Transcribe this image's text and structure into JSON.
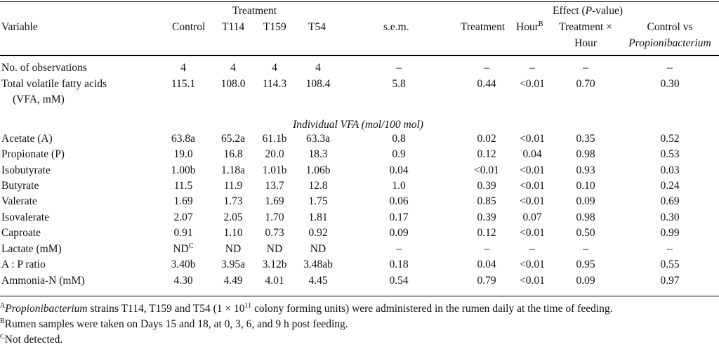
{
  "header": {
    "treatment_group": "Treatment",
    "effect_group_prefix": "Effect (",
    "effect_group_p": "P",
    "effect_group_suffix": "-value)",
    "variable": "Variable",
    "control": "Control",
    "t114": "T114",
    "t159": "T159",
    "t54": "T54",
    "sem": "s.e.m.",
    "eff_treatment": "Treatment",
    "eff_hour": "Hour",
    "eff_hour_sup": "B",
    "eff_txh_line1": "Treatment ×",
    "eff_txh_line2": "Hour",
    "eff_cvp_line1": "Control vs",
    "eff_cvp_line2": "Propionibacterium"
  },
  "section_label": "Individual VFA (mol/100 mol)",
  "rows_top": [
    {
      "variable": "No. of observations",
      "control": "4",
      "t114": "4",
      "t159": "4",
      "t54": "4",
      "sem": "–",
      "treatment": "–",
      "hour": "–",
      "txh": "–",
      "cvp": "–"
    },
    {
      "variable": "Total volatile fatty acids",
      "variable2": "(VFA, mM)",
      "control": "115.1",
      "t114": "108.0",
      "t159": "114.3",
      "t54": "108.4",
      "sem": "5.8",
      "treatment": "0.44",
      "hour": "<0.01",
      "txh": "0.70",
      "cvp": "0.30"
    }
  ],
  "rows": [
    {
      "variable": "Acetate (A)",
      "control": "63.8a",
      "t114": "65.2a",
      "t159": "61.1b",
      "t54": "63.3a",
      "sem": "0.8",
      "treatment": "0.02",
      "hour": "<0.01",
      "txh": "0.35",
      "cvp": "0.52"
    },
    {
      "variable": "Propionate (P)",
      "control": "19.0",
      "t114": "16.8",
      "t159": "20.0",
      "t54": "18.3",
      "sem": "0.9",
      "treatment": "0.12",
      "hour": "0.04",
      "txh": "0.98",
      "cvp": "0.53"
    },
    {
      "variable": "Isobutyrate",
      "control": "1.00b",
      "t114": "1.18a",
      "t159": "1.01b",
      "t54": "1.06b",
      "sem": "0.04",
      "treatment": "<0.01",
      "hour": "<0.01",
      "txh": "0.93",
      "cvp": "0.03"
    },
    {
      "variable": "Butyrate",
      "control": "11.5",
      "t114": "11.9",
      "t159": "13.7",
      "t54": "12.8",
      "sem": "1.0",
      "treatment": "0.39",
      "hour": "<0.01",
      "txh": "0.10",
      "cvp": "0.24"
    },
    {
      "variable": "Valerate",
      "control": "1.69",
      "t114": "1.73",
      "t159": "1.69",
      "t54": "1.75",
      "sem": "0.06",
      "treatment": "0.85",
      "hour": "<0.01",
      "txh": "0.09",
      "cvp": "0.69"
    },
    {
      "variable": "Isovalerate",
      "control": "2.07",
      "t114": "2.05",
      "t159": "1.70",
      "t54": "1.81",
      "sem": "0.17",
      "treatment": "0.39",
      "hour": "0.07",
      "txh": "0.98",
      "cvp": "0.30"
    },
    {
      "variable": "Caproate",
      "control": "0.91",
      "t114": "1.10",
      "t159": "0.73",
      "t54": "0.92",
      "sem": "0.09",
      "treatment": "0.12",
      "hour": "<0.01",
      "txh": "0.50",
      "cvp": "0.99"
    },
    {
      "variable": "Lactate (mM)",
      "control": "ND",
      "control_sup": "C",
      "t114": "ND",
      "t159": "ND",
      "t54": "ND",
      "sem": "–",
      "treatment": "–",
      "hour": "–",
      "txh": "–",
      "cvp": "–"
    },
    {
      "variable": "A : P ratio",
      "control": "3.40b",
      "t114": "3.95a",
      "t159": "3.12b",
      "t54": "3.48ab",
      "sem": "0.18",
      "treatment": "0.04",
      "hour": "<0.01",
      "txh": "0.95",
      "cvp": "0.55"
    },
    {
      "variable": "Ammonia-N (mM)",
      "control": "4.30",
      "t114": "4.49",
      "t159": "4.01",
      "t54": "4.45",
      "sem": "0.54",
      "treatment": "0.79",
      "hour": "<0.01",
      "txh": "0.09",
      "cvp": "0.97"
    }
  ],
  "footnotes": {
    "a_sup": "A",
    "a_ital": "Propionibacterium",
    "a_text1": " strains T114, T159 and T54 (1 × 10",
    "a_exp": "11",
    "a_text2": " colony forming units) were administered in the rumen daily at the time of feeding.",
    "b_sup": "B",
    "b_text": "Rumen samples were taken on Days 15 and 18, at 0, 3, 6, and 9 h post feeding.",
    "c_sup": "C",
    "c_text": "Not detected."
  }
}
